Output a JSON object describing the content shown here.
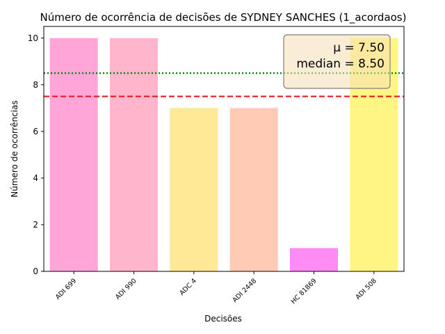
{
  "chart_data": {
    "type": "bar",
    "title": "Número de ocorrência de decisões de SYDNEY SANCHES (1_acordaos)",
    "xlabel": "Decisões",
    "ylabel": "Número de ocorrências",
    "categories": [
      "ADI 699",
      "ADI 990",
      "ADC 4",
      "ADI 2448",
      "HC 81869",
      "ADI 508"
    ],
    "values": [
      10,
      10,
      7,
      7,
      1,
      10
    ],
    "bar_colors": [
      "#ffa6d8",
      "#ffb6cd",
      "#ffe896",
      "#ffcbb4",
      "#ff8cf4",
      "#fff585"
    ],
    "ylim": [
      0,
      10.5
    ],
    "yticks": [
      0,
      2,
      4,
      6,
      8,
      10
    ],
    "grid": false,
    "reference_lines": [
      {
        "value": 7.5,
        "style": "dashed",
        "color": "#e41a1c",
        "role": "mean"
      },
      {
        "value": 8.5,
        "style": "dotted",
        "color": "#008000",
        "role": "median"
      }
    ],
    "stats_box": {
      "mean_label": "μ = 7.50",
      "median_label": "median = 8.50",
      "placement": "top-right",
      "background": "#f5deb3"
    }
  }
}
